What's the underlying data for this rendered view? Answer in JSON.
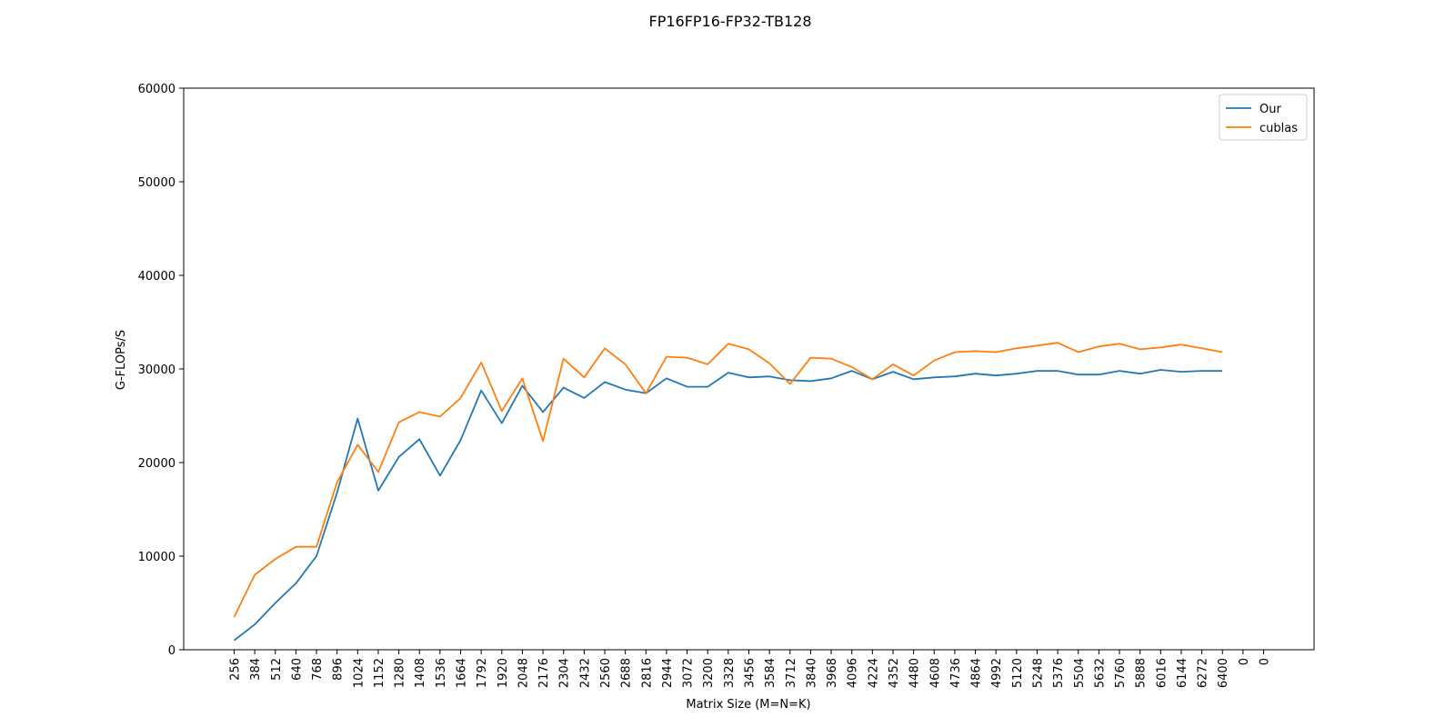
{
  "chart_data": {
    "type": "line",
    "title": "FP16FP16-FP32-TB128",
    "xlabel": "Matrix Size (M=N=K)",
    "ylabel": "G-FLOPs/S",
    "categories": [
      "256",
      "384",
      "512",
      "640",
      "768",
      "896",
      "1024",
      "1152",
      "1280",
      "1408",
      "1536",
      "1664",
      "1792",
      "1920",
      "2048",
      "2176",
      "2304",
      "2432",
      "2560",
      "2688",
      "2816",
      "2944",
      "3072",
      "3200",
      "3328",
      "3456",
      "3584",
      "3712",
      "3840",
      "3968",
      "4096",
      "4224",
      "4352",
      "4480",
      "4608",
      "4736",
      "4864",
      "4992",
      "5120",
      "5248",
      "5376",
      "5504",
      "5632",
      "5760",
      "5888",
      "6016",
      "6144",
      "6272",
      "6400",
      "0",
      "0"
    ],
    "series": [
      {
        "name": "Our",
        "color": "#1f77b4",
        "values": [
          1000,
          2700,
          5000,
          7100,
          10000,
          16800,
          24700,
          17000,
          20600,
          22500,
          18600,
          22400,
          27700,
          24200,
          28200,
          25400,
          28000,
          26900,
          28600,
          27800,
          27400,
          29000,
          28100,
          28100,
          29600,
          29100,
          29200,
          28800,
          28700,
          29000,
          29800,
          28900,
          29700,
          28900,
          29100,
          29200,
          29500,
          29300,
          29500,
          29800,
          29800,
          29400,
          29400,
          29800,
          29500,
          29900,
          29700,
          29800,
          29800,
          null,
          null
        ]
      },
      {
        "name": "cublas",
        "color": "#ff7f0e",
        "values": [
          3500,
          8000,
          9700,
          11000,
          11000,
          17900,
          21900,
          19000,
          24300,
          25400,
          24900,
          26900,
          30700,
          25500,
          29000,
          22300,
          31100,
          29100,
          32200,
          30500,
          27400,
          31300,
          31200,
          30500,
          32700,
          32100,
          30600,
          28400,
          31200,
          31100,
          30200,
          28900,
          30500,
          29300,
          30900,
          31800,
          31900,
          31800,
          32200,
          32500,
          32800,
          31800,
          32400,
          32700,
          32100,
          32300,
          32600,
          32200,
          31800,
          null,
          null
        ]
      }
    ],
    "ylim": [
      0,
      60000
    ],
    "yticks": [
      0,
      10000,
      20000,
      30000,
      40000,
      50000,
      60000
    ],
    "grid": false,
    "legend": "upper right"
  }
}
